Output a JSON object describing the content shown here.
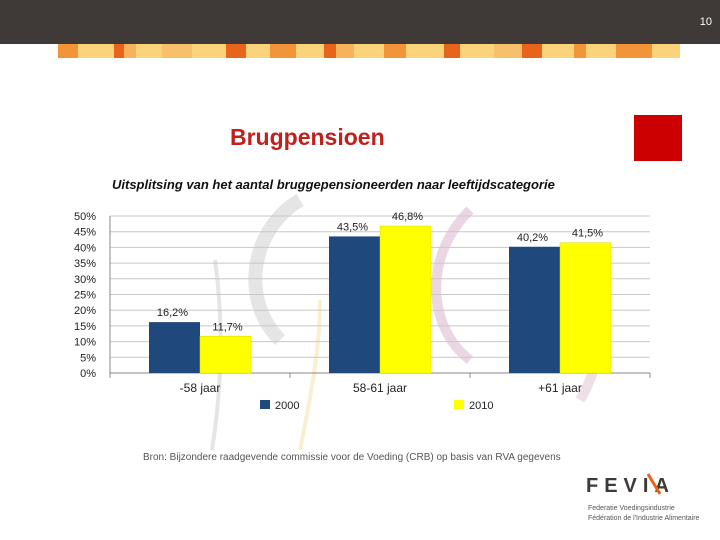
{
  "slide": {
    "page_number": "10",
    "title": "Brugpensioen",
    "source": "Bron: Bijzondere raadgevende commissie voor de Voeding (CRB) op basis van RVA gegevens"
  },
  "logo": {
    "text": "FEVIA",
    "line1": "Federatie Voedingsindustrie",
    "line2": "Fédération de l'Industrie Alimentaire"
  },
  "colors": {
    "accent_red": "#c0211c",
    "series_2000": "#1f497d",
    "series_2010": "#ffff00"
  },
  "chart_data": {
    "type": "bar",
    "title": "Uitsplitsing van het aantal bruggepensioneerden naar leeftijdscategorie",
    "categories": [
      "-58 jaar",
      "58-61 jaar",
      "+61 jaar"
    ],
    "series": [
      {
        "name": "2000",
        "values": [
          16.2,
          43.5,
          40.2
        ],
        "labels": [
          "16,2%",
          "43,5%",
          "40,2%"
        ]
      },
      {
        "name": "2010",
        "values": [
          11.7,
          46.8,
          41.5
        ],
        "labels": [
          "11,7%",
          "46,8%",
          "41,5%"
        ]
      }
    ],
    "ylim": [
      0,
      50
    ],
    "yticks": [
      "0%",
      "5%",
      "10%",
      "15%",
      "20%",
      "25%",
      "30%",
      "35%",
      "40%",
      "45%",
      "50%"
    ],
    "xlabel": "",
    "ylabel": "",
    "legend": "bottom",
    "grid": true
  }
}
